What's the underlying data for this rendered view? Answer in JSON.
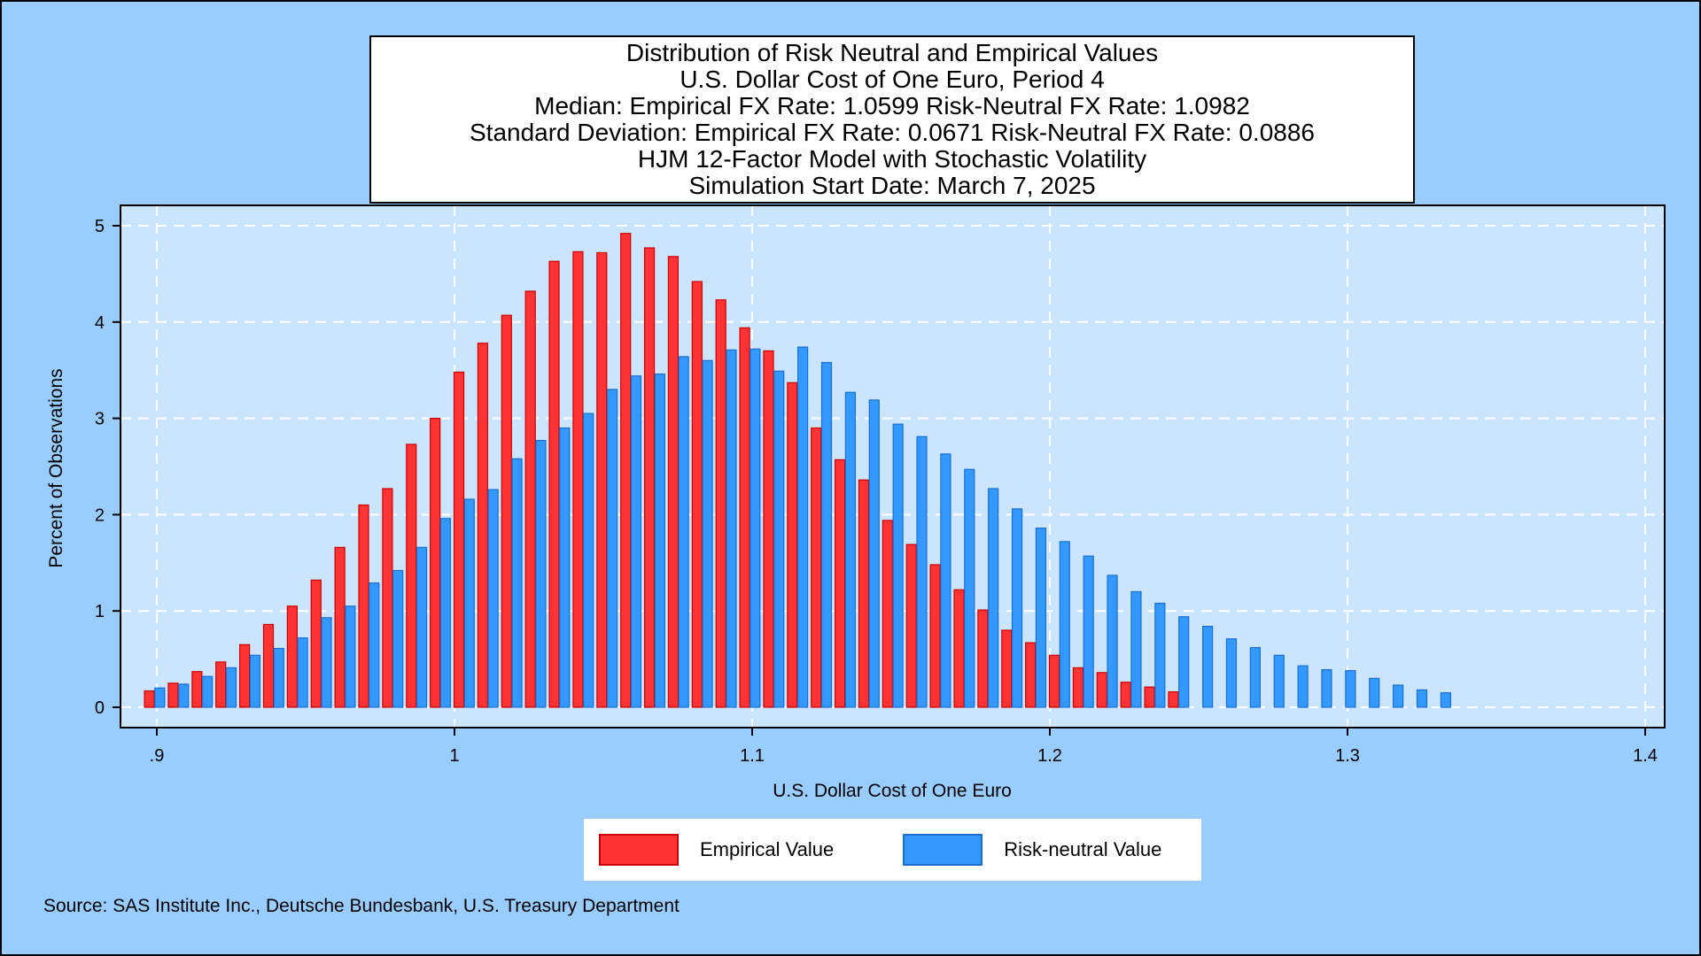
{
  "chart_data": {
    "type": "bar",
    "title_lines": [
      "Distribution of Risk Neutral and Empirical Values",
      "U.S. Dollar Cost of One Euro, Period 4",
      "Median: Empirical FX Rate:  1.0599   Risk-Neutral FX Rate:  1.0982",
      "Standard Deviation: Empirical FX Rate:  0.0671   Risk-Neutral FX Rate:  0.0886",
      "HJM 12-Factor Model with Stochastic Volatility",
      "Simulation Start Date: March 7, 2025"
    ],
    "xlabel": "U.S. Dollar Cost of One Euro",
    "ylabel": "Percent of Observations",
    "xlim": [
      0.9,
      1.4
    ],
    "ylim": [
      0,
      5
    ],
    "x_ticks": [
      0.9,
      1.0,
      1.1,
      1.2,
      1.3,
      1.4
    ],
    "x_tick_labels": [
      ".9",
      "1",
      "1.1",
      "1.2",
      "1.3",
      "1.4"
    ],
    "y_ticks": [
      0,
      1,
      2,
      3,
      4,
      5
    ],
    "y_tick_labels": [
      "0",
      "1",
      "2",
      "3",
      "4",
      "5"
    ],
    "grid": true,
    "legend_position": "bottom-center",
    "series": [
      {
        "name": "Empirical Value",
        "color": "#ff3333",
        "edge_color": "#cc0000",
        "x": [
          0.8975,
          0.9055,
          0.9135,
          0.9215,
          0.9295,
          0.9375,
          0.9455,
          0.9535,
          0.9615,
          0.9695,
          0.9775,
          0.9855,
          0.9935,
          1.0015,
          1.0095,
          1.0175,
          1.0255,
          1.0335,
          1.0415,
          1.0495,
          1.0575,
          1.0655,
          1.0735,
          1.0815,
          1.0895,
          1.0975,
          1.1055,
          1.1135,
          1.1215,
          1.1295,
          1.1375,
          1.1455,
          1.1535,
          1.1615,
          1.1695,
          1.1775,
          1.1855,
          1.1935,
          1.2015,
          1.2095,
          1.2175,
          1.2255,
          1.2335,
          1.2415
        ],
        "values": [
          0.17,
          0.25,
          0.37,
          0.47,
          0.65,
          0.86,
          1.05,
          1.32,
          1.66,
          2.1,
          2.27,
          2.73,
          3.0,
          3.48,
          3.78,
          4.07,
          4.32,
          4.63,
          4.73,
          4.72,
          4.92,
          4.77,
          4.68,
          4.42,
          4.23,
          3.94,
          3.7,
          3.37,
          2.9,
          2.57,
          2.36,
          1.94,
          1.69,
          1.48,
          1.22,
          1.01,
          0.8,
          0.67,
          0.54,
          0.41,
          0.36,
          0.26,
          0.21,
          0.16
        ]
      },
      {
        "name": "Risk-neutral Value",
        "color": "#3399ff",
        "edge_color": "#1a6fd0",
        "x": [
          0.901,
          0.909,
          0.917,
          0.925,
          0.933,
          0.941,
          0.949,
          0.957,
          0.965,
          0.973,
          0.981,
          0.989,
          0.997,
          1.005,
          1.013,
          1.021,
          1.029,
          1.037,
          1.045,
          1.053,
          1.061,
          1.069,
          1.077,
          1.085,
          1.093,
          1.101,
          1.109,
          1.117,
          1.125,
          1.133,
          1.141,
          1.149,
          1.157,
          1.165,
          1.173,
          1.181,
          1.189,
          1.197,
          1.205,
          1.213,
          1.221,
          1.229,
          1.237,
          1.245,
          1.253,
          1.261,
          1.269,
          1.277,
          1.285,
          1.293,
          1.301,
          1.309,
          1.317,
          1.325,
          1.333,
          1.341
        ],
        "values": [
          0.2,
          0.24,
          0.32,
          0.41,
          0.54,
          0.61,
          0.72,
          0.93,
          1.05,
          1.29,
          1.42,
          1.66,
          1.96,
          2.16,
          2.26,
          2.58,
          2.77,
          2.9,
          3.05,
          3.3,
          3.44,
          3.46,
          3.64,
          3.6,
          3.71,
          3.72,
          3.49,
          3.74,
          3.58,
          3.27,
          3.19,
          2.94,
          2.81,
          2.63,
          2.47,
          2.27,
          2.06,
          1.86,
          1.72,
          1.57,
          1.37,
          1.2,
          1.08,
          0.94,
          0.84,
          0.71,
          0.62,
          0.54,
          0.43,
          0.39,
          0.38,
          0.3,
          0.23,
          0.18,
          0.15,
          0.0
        ]
      }
    ]
  },
  "source_text": "Source: SAS Institute Inc., Deutsche Bundesbank, U.S. Treasury Department"
}
